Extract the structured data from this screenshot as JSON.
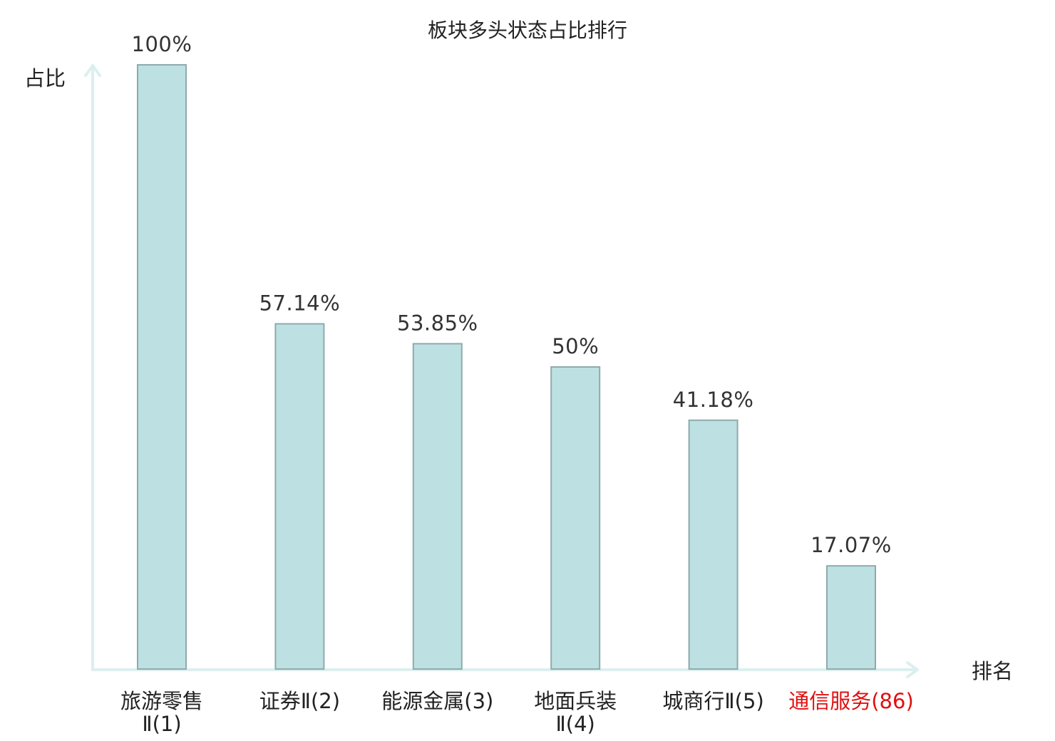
{
  "chart_data": {
    "type": "bar",
    "title": "板块多头状态占比排行",
    "xlabel": "排名",
    "ylabel": "占比",
    "ylim": [
      0,
      100
    ],
    "grid": false,
    "categories": [
      [
        "旅游零售",
        "Ⅱ(1)"
      ],
      [
        "证券Ⅱ(2)"
      ],
      [
        "能源金属(3)"
      ],
      [
        "地面兵装",
        "Ⅱ(4)"
      ],
      [
        "城商行Ⅱ(5)"
      ],
      [
        "通信服务(86)"
      ]
    ],
    "values": [
      100,
      57.14,
      53.85,
      50,
      41.18,
      17.07
    ],
    "value_labels": [
      "100%",
      "57.14%",
      "53.85%",
      "50%",
      "41.18%",
      "17.07%"
    ],
    "highlight_index": 5,
    "colors": {
      "bar_fill": "#bde0e3",
      "bar_stroke": "#8faaac",
      "axis": "#dcefee",
      "highlight_text": "#e01010",
      "text": "#222222"
    }
  }
}
